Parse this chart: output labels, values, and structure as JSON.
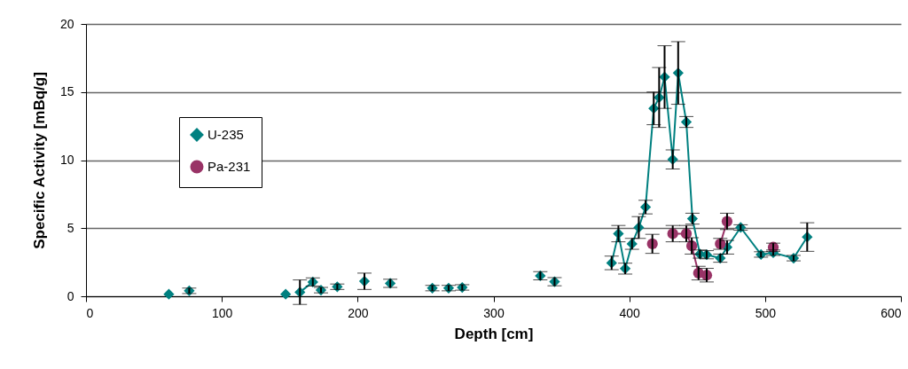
{
  "chart_data": {
    "type": "line",
    "xlabel": "Depth [cm]",
    "ylabel": "Specific Activity [mBq/g]",
    "xlim": [
      0,
      600
    ],
    "xticks": [
      0,
      100,
      200,
      300,
      400,
      500,
      600
    ],
    "ylim": [
      0,
      20
    ],
    "yticks": [
      0,
      5,
      10,
      15,
      20
    ],
    "grid": "y",
    "legend": "top left",
    "line_style": "solid",
    "series": [
      {
        "name": "U-235",
        "color": "#008080",
        "marker": "diamond",
        "x": [
          387,
          392,
          397,
          402,
          407,
          412,
          418,
          422,
          426,
          432,
          436,
          442,
          446.5,
          452,
          457,
          467,
          472,
          482,
          497,
          506,
          521,
          531
        ],
        "values": [
          2.45,
          4.6,
          2.03,
          3.85,
          5.05,
          6.55,
          13.8,
          14.6,
          16.1,
          10.05,
          16.4,
          12.8,
          5.7,
          3.1,
          3.05,
          2.8,
          3.6,
          5.05,
          3.07,
          3.2,
          2.8,
          4.35
        ],
        "errors": [
          0.5,
          0.6,
          0.4,
          0.4,
          0.8,
          0.5,
          1.2,
          2.2,
          2.3,
          0.7,
          2.3,
          0.4,
          0.4,
          0.3,
          0.3,
          0.3,
          0.5,
          0.2,
          0.2,
          0.2,
          0.2,
          1.05
        ]
      },
      {
        "color": "#008080",
        "marker": "diamond",
        "x": [
          157.5,
          167
        ],
        "values": [
          0.3,
          1.05
        ],
        "errors": [
          0.9,
          0.3
        ]
      },
      {
        "type": "scatter",
        "color": "#008080",
        "marker": "diamond",
        "x": [
          61,
          76,
          147,
          173,
          185,
          205,
          224,
          255,
          267,
          277,
          334.5,
          345
        ],
        "values": [
          0.15,
          0.4,
          0.15,
          0.45,
          0.7,
          1.1,
          0.95,
          0.6,
          0.6,
          0.65,
          1.5,
          1.07
        ],
        "errors": [
          null,
          0.2,
          null,
          0.2,
          0.2,
          0.6,
          0.3,
          0.2,
          0.2,
          0.2,
          0.3,
          0.3
        ]
      },
      {
        "name": "Pa-231",
        "color": "#993366",
        "marker": "circle",
        "x": [
          432,
          442,
          446,
          451,
          457
        ],
        "values": [
          4.6,
          4.6,
          3.7,
          1.7,
          1.55
        ],
        "errors": [
          0.6,
          0.6,
          0.6,
          0.5,
          0.5
        ]
      },
      {
        "color": "#993366",
        "marker": "circle",
        "x": [
          467,
          472
        ],
        "values": [
          3.85,
          5.5
        ],
        "errors": [
          0.4,
          0.6
        ]
      },
      {
        "type": "scatter",
        "color": "#993366",
        "marker": "circle",
        "x": [
          417,
          506
        ],
        "values": [
          3.85,
          3.6
        ],
        "errors": [
          0.7,
          0.3
        ]
      }
    ]
  }
}
